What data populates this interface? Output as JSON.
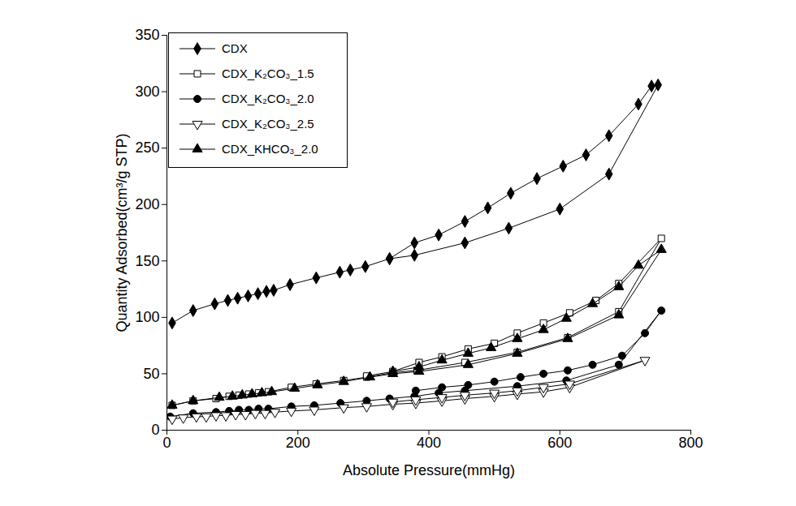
{
  "chart_data": {
    "type": "line",
    "x_label": "Absolute Pressure(mmHg)",
    "y_label": "Quantity Adsorbed(cm³/g STP)",
    "xlim": [
      0,
      800
    ],
    "xticks": [
      0,
      200,
      400,
      600,
      800
    ],
    "ylim": [
      0,
      350
    ],
    "yticks": [
      0,
      50,
      100,
      150,
      200,
      250,
      300,
      350
    ],
    "grid": false,
    "legend": "upper left",
    "series": [
      {
        "name": "CDX",
        "color": "#000000",
        "marker": "diamond",
        "x": [
          8,
          40,
          73,
          93,
          108,
          124,
          139,
          152,
          163,
          188,
          228,
          264,
          280,
          303,
          340,
          378,
          455,
          522,
          600,
          675,
          750,
          740,
          720,
          675,
          640,
          605,
          565,
          525,
          490,
          455,
          415,
          378,
          340
        ],
        "values": [
          95,
          106,
          112,
          115,
          117,
          119,
          121,
          123,
          124,
          129,
          135,
          140,
          142,
          145,
          152,
          155,
          166,
          179,
          196,
          227,
          306,
          305,
          289,
          261,
          244,
          234,
          223,
          210,
          197,
          185,
          173,
          166,
          152
        ]
      },
      {
        "name": "CDX_K₂CO₃_1.5",
        "color": "#000000",
        "marker": "square_open",
        "x": [
          8,
          40,
          75,
          95,
          110,
          125,
          140,
          155,
          190,
          228,
          270,
          305,
          345,
          382,
          455,
          535,
          612,
          690,
          755,
          690,
          655,
          615,
          575,
          535,
          500,
          460,
          420,
          385,
          345,
          305
        ],
        "values": [
          22,
          26,
          28,
          30,
          31,
          32,
          33,
          34,
          38,
          41,
          44,
          47,
          51,
          53,
          60,
          69,
          82,
          105,
          170,
          130,
          115,
          104,
          95,
          86,
          77,
          72,
          65,
          60,
          52,
          48
        ]
      },
      {
        "name": "CDX_K₂CO₃_2.0",
        "color": "#000000",
        "marker": "circle",
        "x": [
          5,
          40,
          75,
          95,
          110,
          125,
          140,
          155,
          190,
          225,
          265,
          305,
          340,
          378,
          415,
          455,
          535,
          610,
          690,
          755,
          730,
          695,
          650,
          612,
          575,
          540,
          500,
          460,
          420,
          380
        ],
        "values": [
          12,
          15,
          16,
          17,
          18,
          18,
          19,
          19,
          21,
          22,
          24,
          26,
          28,
          30,
          33,
          35,
          39,
          44,
          58,
          106,
          86,
          66,
          58,
          53,
          50,
          47,
          43,
          40,
          38,
          35
        ]
      },
      {
        "name": "CDX_K₂CO₃_2.5",
        "color": "#000000",
        "marker": "triangle_down_open",
        "x": [
          8,
          25,
          45,
          60,
          75,
          90,
          105,
          120,
          135,
          150,
          165,
          190,
          225,
          270,
          305,
          345,
          380,
          420,
          455,
          500,
          535,
          575,
          615,
          730,
          615,
          575,
          535,
          500,
          455,
          420,
          380,
          345
        ],
        "values": [
          10,
          11,
          12,
          12,
          13,
          13,
          14,
          14,
          15,
          15,
          16,
          17,
          18,
          20,
          21,
          23,
          24,
          26,
          28,
          30,
          32,
          34,
          38,
          62,
          41,
          38,
          35,
          33,
          31,
          29,
          27,
          25
        ]
      },
      {
        "name": "CDX_KHCO₃_2.0",
        "color": "#000000",
        "marker": "triangle",
        "x": [
          8,
          40,
          80,
          100,
          115,
          130,
          145,
          160,
          195,
          230,
          270,
          310,
          345,
          385,
          460,
          535,
          612,
          690,
          755,
          720,
          690,
          650,
          610,
          575,
          535,
          495,
          460,
          420,
          385,
          345
        ],
        "values": [
          22,
          26,
          29,
          30,
          31,
          32,
          33,
          34,
          37,
          40,
          43,
          47,
          50,
          52,
          58,
          68,
          81,
          102,
          160,
          146,
          127,
          112,
          99,
          89,
          81,
          73,
          68,
          62,
          56,
          52
        ]
      }
    ]
  }
}
